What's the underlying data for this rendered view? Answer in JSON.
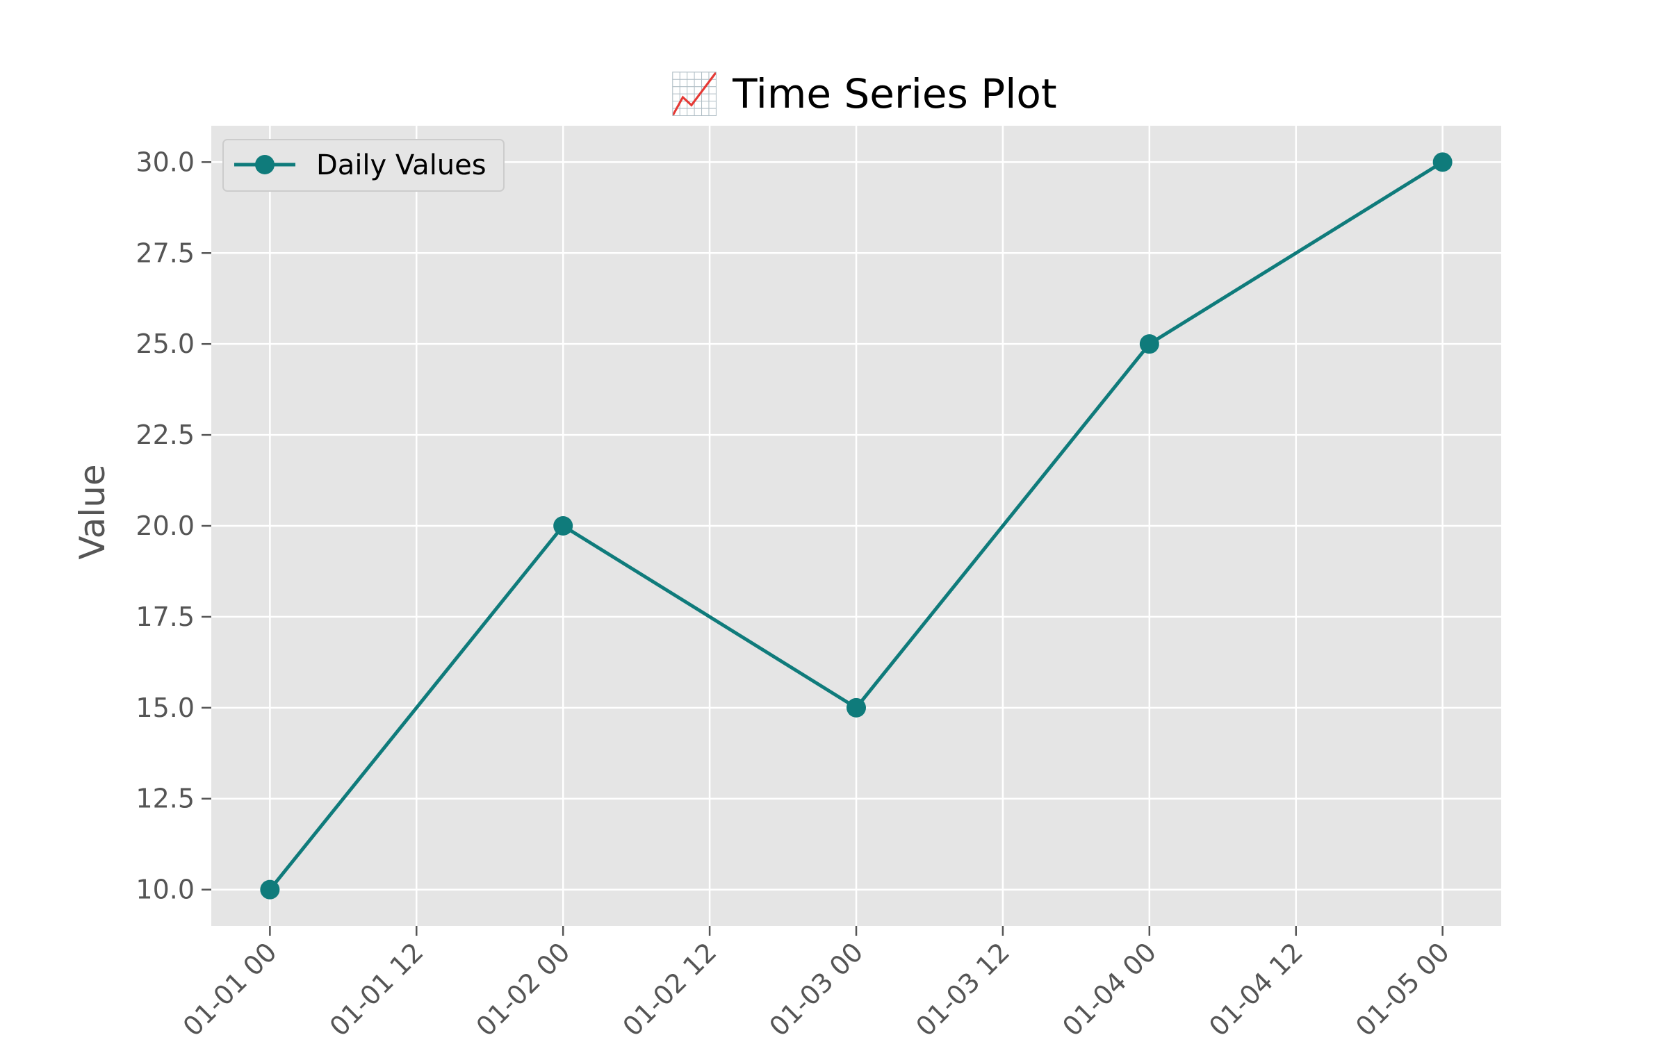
{
  "chart_data": {
    "type": "line",
    "title": "📈 Time Series Plot",
    "xlabel": "",
    "ylabel": "Value",
    "x": [
      "01-01 00",
      "01-02 00",
      "01-03 00",
      "01-04 00",
      "01-05 00"
    ],
    "x_numeric": [
      0,
      1,
      2,
      3,
      4
    ],
    "x_ticks": [
      "01-01 00",
      "01-01 12",
      "01-02 00",
      "01-02 12",
      "01-03 00",
      "01-03 12",
      "01-04 00",
      "01-04 12",
      "01-05 00"
    ],
    "series": [
      {
        "name": "Daily Values",
        "values": [
          10,
          20,
          15,
          25,
          30
        ],
        "color": "#0f7b7b"
      }
    ],
    "ylim": [
      9.0,
      31.0
    ],
    "xlim": [
      -0.2,
      4.2
    ],
    "y_ticks": [
      10.0,
      12.5,
      15.0,
      17.5,
      20.0,
      22.5,
      25.0,
      27.5,
      30.0
    ],
    "y_tick_labels": [
      "10.0",
      "12.5",
      "15.0",
      "17.5",
      "20.0",
      "22.5",
      "25.0",
      "27.5",
      "30.0"
    ],
    "grid": true,
    "legend": "top-left",
    "colors": {
      "background": "#e5e5e5",
      "grid": "#ffffff",
      "tick": "#555555"
    }
  }
}
